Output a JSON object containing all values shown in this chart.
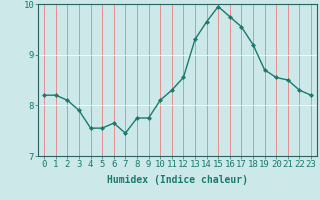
{
  "x": [
    0,
    1,
    2,
    3,
    4,
    5,
    6,
    7,
    8,
    9,
    10,
    11,
    12,
    13,
    14,
    15,
    16,
    17,
    18,
    19,
    20,
    21,
    22,
    23
  ],
  "y": [
    8.2,
    8.2,
    8.1,
    7.9,
    7.55,
    7.55,
    7.65,
    7.45,
    7.75,
    7.75,
    8.1,
    8.3,
    8.55,
    9.3,
    9.65,
    9.95,
    9.75,
    9.55,
    9.2,
    8.7,
    8.55,
    8.5,
    8.3,
    8.2
  ],
  "line_color": "#1a7a6e",
  "marker": "D",
  "marker_size": 2.0,
  "linewidth": 1.0,
  "bg_color": "#cce8e8",
  "grid_color_v": "#e88080",
  "grid_color_h": "#ffffff",
  "xlabel": "Humidex (Indice chaleur)",
  "ylim": [
    7,
    10
  ],
  "xlim": [
    -0.5,
    23.5
  ],
  "yticks": [
    7,
    8,
    9,
    10
  ],
  "xticks": [
    0,
    1,
    2,
    3,
    4,
    5,
    6,
    7,
    8,
    9,
    10,
    11,
    12,
    13,
    14,
    15,
    16,
    17,
    18,
    19,
    20,
    21,
    22,
    23
  ],
  "xlabel_fontsize": 7,
  "tick_fontsize": 6.5,
  "spine_color": "#2a6060"
}
